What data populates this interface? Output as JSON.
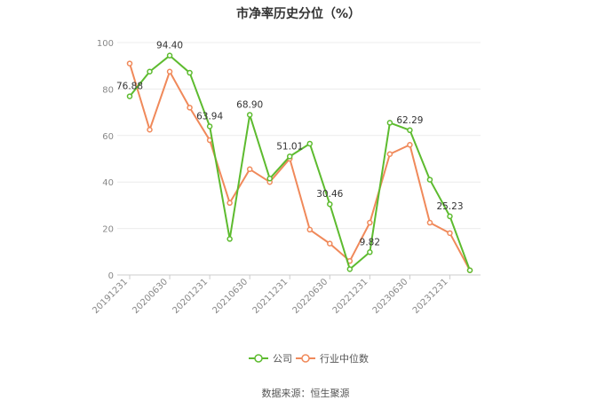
{
  "chart_data": {
    "type": "line",
    "title": "市净率历史分位（%）",
    "ylim": [
      0,
      100
    ],
    "yticks": [
      "0",
      "20",
      "40",
      "60",
      "80",
      "100"
    ],
    "grid": true,
    "legend_position": "bottom-center",
    "x": [
      "20191231",
      "20200331",
      "20200630",
      "20200930",
      "20201231",
      "20210331",
      "20210630",
      "20210930",
      "20211231",
      "20220331",
      "20220630",
      "20220930",
      "20221231",
      "20230331",
      "20230630",
      "20230930",
      "20231231",
      "20240331"
    ],
    "xtick_labels": [
      "20191231",
      "20200630",
      "20201231",
      "20210630",
      "20211231",
      "20220630",
      "20221231",
      "20230630",
      "20231231"
    ],
    "series": [
      {
        "name": "公司",
        "color": "#5dbb2f",
        "values": [
          76.88,
          87.5,
          94.4,
          87.0,
          63.94,
          15.5,
          68.9,
          41.5,
          51.01,
          56.5,
          30.46,
          2.5,
          9.82,
          65.5,
          62.29,
          41.0,
          25.23,
          2.0
        ],
        "labels": [
          "76.88",
          "",
          "94.40",
          "",
          "63.94",
          "",
          "68.90",
          "",
          "51.01",
          "",
          "30.46",
          "",
          "9.82",
          "",
          "62.29",
          "",
          "25.23",
          ""
        ]
      },
      {
        "name": "行业中位数",
        "color": "#f0895a",
        "values": [
          91.0,
          62.5,
          87.5,
          72.0,
          58.0,
          31.0,
          45.5,
          40.0,
          50.0,
          19.5,
          13.5,
          6.0,
          22.5,
          52.0,
          56.0,
          22.5,
          18.0,
          2.0
        ]
      }
    ]
  },
  "source": "数据来源：恒生聚源"
}
